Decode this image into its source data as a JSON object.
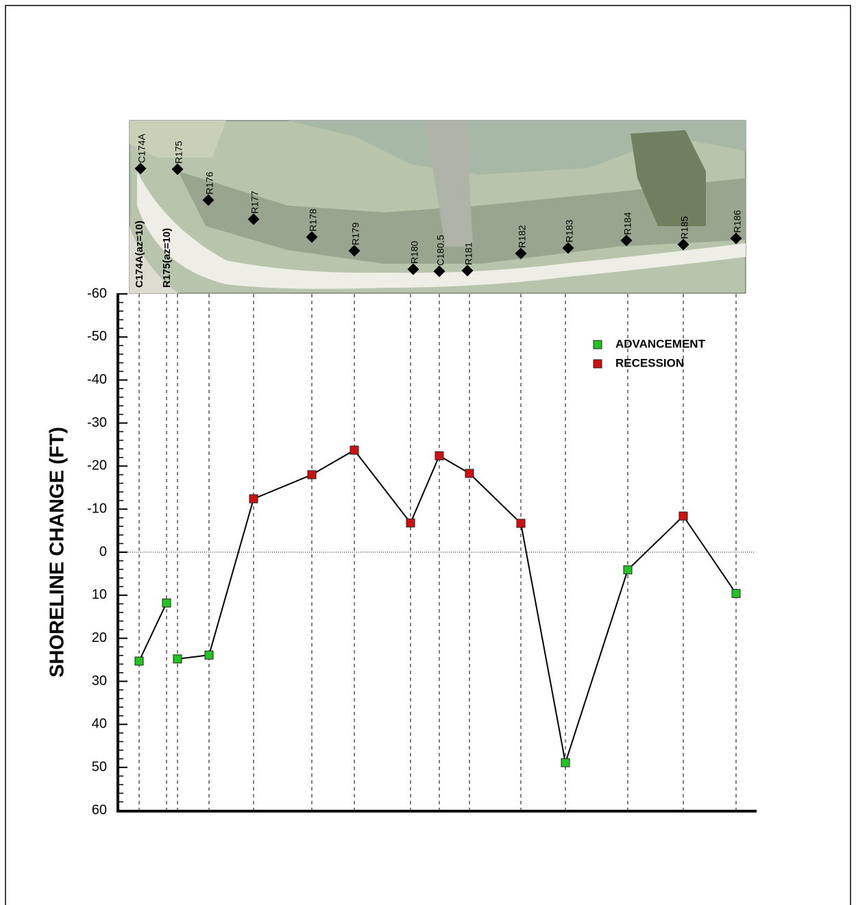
{
  "chart_data": {
    "type": "line",
    "y_label": "SHORELINE CHANGE (FT)",
    "categories": [
      "C174A(az=10)",
      "R175(az=10)",
      null,
      null,
      null,
      null,
      null,
      null,
      null,
      null,
      null,
      null,
      null,
      null,
      null
    ],
    "map_labels": [
      "C174A",
      "R175",
      "R176",
      "R177",
      "R178",
      "R179",
      "R180",
      "C180.5",
      "R181",
      "R182",
      "R183",
      "R184",
      "R185",
      "R186"
    ],
    "series": [
      {
        "name": "ADVANCEMENT",
        "color": "#22c422",
        "values": [
          25.3,
          11.8,
          24.8,
          23.9,
          null,
          null,
          null,
          null,
          null,
          null,
          null,
          48.9,
          4.1,
          null,
          9.6
        ]
      },
      {
        "name": "RECESSION",
        "color": "#d01010",
        "values": [
          null,
          null,
          null,
          null,
          -12.4,
          -18.0,
          -23.7,
          -6.8,
          -22.4,
          -18.3,
          -6.7,
          null,
          null,
          -8.4,
          null
        ]
      }
    ],
    "ylim": [
      -60,
      60
    ],
    "y_inverted": true,
    "yticks": [
      -60,
      -50,
      -40,
      -30,
      -20,
      -10,
      0,
      10,
      20,
      30,
      40,
      50,
      60
    ],
    "legend_position": "upper right"
  }
}
